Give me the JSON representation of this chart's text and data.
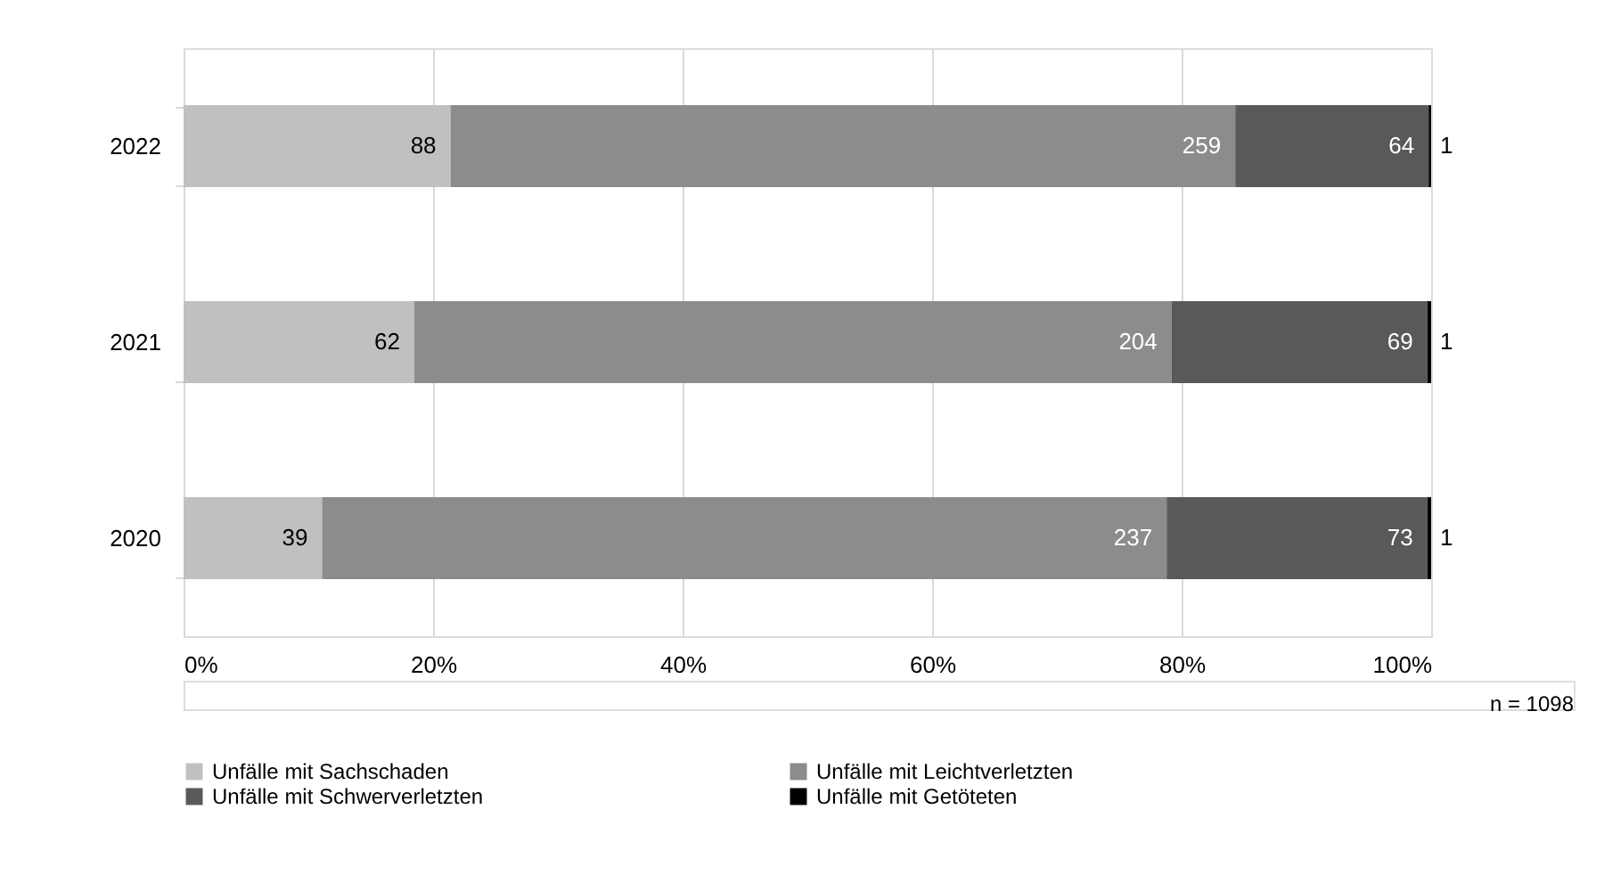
{
  "chart_data": {
    "type": "bar",
    "orientation": "horizontal",
    "stacked": true,
    "categories": [
      "2022",
      "2021",
      "2020"
    ],
    "series": [
      {
        "name": "Unfälle mit Sachschaden",
        "color": "#c0c0c0",
        "values": [
          21.4,
          18.5,
          11.1
        ]
      },
      {
        "name": "Unfälle mit Leichtverletzten",
        "color": "#8c8c8c",
        "values": [
          62.9,
          60.7,
          67.7
        ]
      },
      {
        "name": "Unfälle mit Schwerverletzten",
        "color": "#595959",
        "values": [
          15.5,
          20.5,
          20.9
        ]
      },
      {
        "name": "Unfälle mit Getöteten",
        "color": "#000000",
        "values": [
          0.2,
          0.3,
          0.3
        ]
      }
    ],
    "xlim": [
      0,
      100
    ],
    "xticks": [
      {
        "value": 0,
        "label": "0%"
      },
      {
        "value": 20,
        "label": "20%"
      },
      {
        "value": 40,
        "label": "40%"
      },
      {
        "value": 60,
        "label": "60%"
      },
      {
        "value": 80,
        "label": "80%"
      },
      {
        "value": 100,
        "label": "100%"
      }
    ],
    "grid": "x",
    "legend": "bottom",
    "annotations": [
      {
        "text": "88",
        "x": 21.4,
        "y": "2022"
      },
      {
        "text": "259",
        "x": 84.3,
        "y": "2022"
      },
      {
        "text": "64",
        "x": 99.8,
        "y": "2022"
      },
      {
        "text": "1",
        "x": 100,
        "y": "2022"
      },
      {
        "text": "62",
        "x": 18.5,
        "y": "2021"
      },
      {
        "text": "204",
        "x": 79.2,
        "y": "2021"
      },
      {
        "text": "69",
        "x": 99.7,
        "y": "2021"
      },
      {
        "text": "1",
        "x": 100,
        "y": "2021"
      },
      {
        "text": "39",
        "x": 11.1,
        "y": "2020"
      },
      {
        "text": "237",
        "x": 78.8,
        "y": "2020"
      },
      {
        "text": "73",
        "x": 99.7,
        "y": "2020"
      },
      {
        "text": "1",
        "x": 100,
        "y": "2020"
      },
      "n = 1098"
    ]
  }
}
